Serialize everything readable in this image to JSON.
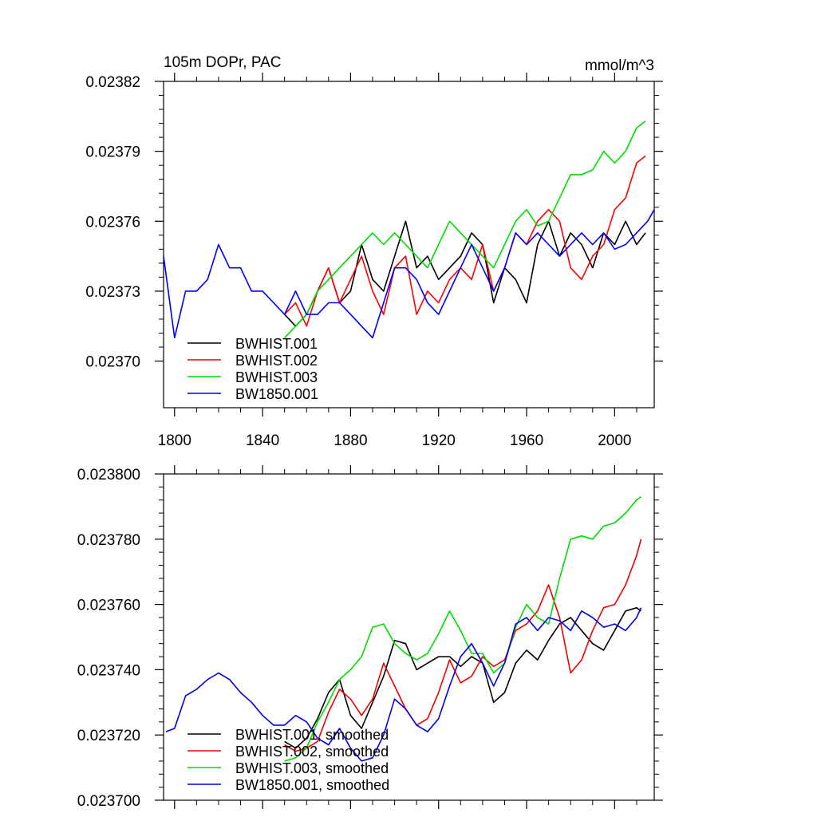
{
  "chart_data": [
    {
      "type": "line",
      "title": "105m DOPr, PAC",
      "units": "mmol/m^3",
      "xlabel": "",
      "ylabel": "",
      "xlim": [
        1795,
        2018
      ],
      "ylim": [
        0.02368,
        0.02382
      ],
      "xticks": [
        1800,
        1840,
        1880,
        1920,
        1960,
        2000
      ],
      "xtick_labels": [
        "1800",
        "1840",
        "1880",
        "1920",
        "1960",
        "2000"
      ],
      "yticks": [
        0.0237,
        0.02373,
        0.02376,
        0.02379,
        0.02382
      ],
      "ytick_labels": [
        "0.02370",
        "0.02373",
        "0.02376",
        "0.02379",
        "0.02382"
      ],
      "legend": [
        "BWHIST.001",
        "BWHIST.002",
        "BWHIST.003",
        "BW1850.001"
      ],
      "legend_position": "bottom-left",
      "series": [
        {
          "name": "BWHIST.001",
          "color": "#000000",
          "x": [
            1850,
            1855,
            1860,
            1865,
            1870,
            1875,
            1880,
            1885,
            1890,
            1895,
            1900,
            1905,
            1910,
            1915,
            1920,
            1925,
            1930,
            1935,
            1940,
            1945,
            1950,
            1955,
            1960,
            1965,
            1970,
            1975,
            1980,
            1985,
            1990,
            1995,
            2000,
            2005,
            2010,
            2014
          ],
          "values": [
            0.02372,
            0.023715,
            0.02372,
            0.02373,
            0.02374,
            0.023725,
            0.02373,
            0.02375,
            0.023735,
            0.02373,
            0.023745,
            0.02376,
            0.02374,
            0.023745,
            0.023735,
            0.02374,
            0.023745,
            0.023755,
            0.02375,
            0.023725,
            0.02374,
            0.023735,
            0.023725,
            0.02375,
            0.02376,
            0.023745,
            0.023755,
            0.02375,
            0.02374,
            0.023755,
            0.02375,
            0.02376,
            0.02375,
            0.023755
          ]
        },
        {
          "name": "BWHIST.002",
          "color": "#ff0000",
          "x": [
            1850,
            1855,
            1860,
            1865,
            1870,
            1875,
            1880,
            1885,
            1890,
            1895,
            1900,
            1905,
            1910,
            1915,
            1920,
            1925,
            1930,
            1935,
            1940,
            1945,
            1950,
            1955,
            1960,
            1965,
            1970,
            1975,
            1980,
            1985,
            1990,
            1995,
            2000,
            2005,
            2010,
            2014
          ],
          "values": [
            0.02372,
            0.023725,
            0.023715,
            0.02373,
            0.02374,
            0.023725,
            0.023735,
            0.023745,
            0.02373,
            0.02372,
            0.02374,
            0.023745,
            0.02372,
            0.02373,
            0.023725,
            0.023735,
            0.02374,
            0.023735,
            0.02375,
            0.02373,
            0.02374,
            0.023755,
            0.02375,
            0.02376,
            0.023765,
            0.02376,
            0.02374,
            0.023735,
            0.023745,
            0.02375,
            0.023765,
            0.02377,
            0.023785,
            0.023788
          ]
        },
        {
          "name": "BWHIST.003",
          "color": "#00dd00",
          "x": [
            1850,
            1855,
            1860,
            1865,
            1870,
            1875,
            1880,
            1885,
            1890,
            1895,
            1900,
            1905,
            1910,
            1915,
            1920,
            1925,
            1930,
            1935,
            1940,
            1945,
            1950,
            1955,
            1960,
            1965,
            1970,
            1975,
            1980,
            1985,
            1990,
            1995,
            2000,
            2005,
            2010,
            2014
          ],
          "values": [
            0.02371,
            0.023715,
            0.02372,
            0.02373,
            0.023735,
            0.02374,
            0.023745,
            0.02375,
            0.023755,
            0.02375,
            0.023755,
            0.02375,
            0.023745,
            0.02374,
            0.02375,
            0.02376,
            0.023755,
            0.02375,
            0.023745,
            0.02374,
            0.02375,
            0.02376,
            0.023765,
            0.023758,
            0.02376,
            0.02377,
            0.02378,
            0.02378,
            0.023782,
            0.02379,
            0.023785,
            0.02379,
            0.0238,
            0.023803
          ]
        },
        {
          "name": "BW1850.001",
          "color": "#0000ff",
          "x": [
            1795,
            1800,
            1805,
            1810,
            1815,
            1820,
            1825,
            1830,
            1835,
            1840,
            1845,
            1850,
            1855,
            1860,
            1865,
            1870,
            1875,
            1880,
            1885,
            1890,
            1895,
            1900,
            1905,
            1910,
            1915,
            1920,
            1925,
            1930,
            1935,
            1940,
            1945,
            1950,
            1955,
            1960,
            1965,
            1970,
            1975,
            1980,
            1985,
            1990,
            1995,
            2000,
            2005,
            2010,
            2015,
            2018
          ],
          "values": [
            0.023745,
            0.02371,
            0.02373,
            0.02373,
            0.023735,
            0.02375,
            0.02374,
            0.02374,
            0.02373,
            0.02373,
            0.023725,
            0.02372,
            0.02373,
            0.02372,
            0.02372,
            0.023725,
            0.023725,
            0.02372,
            0.023715,
            0.02371,
            0.023725,
            0.02374,
            0.02374,
            0.023735,
            0.023725,
            0.02372,
            0.02373,
            0.02374,
            0.02375,
            0.02374,
            0.02373,
            0.02374,
            0.023755,
            0.02375,
            0.023755,
            0.02375,
            0.023745,
            0.02375,
            0.023755,
            0.02375,
            0.023755,
            0.023748,
            0.02375,
            0.023755,
            0.02376,
            0.023765
          ]
        }
      ]
    },
    {
      "type": "line",
      "title": "",
      "xlabel": "",
      "ylabel": "",
      "xlim": [
        1795,
        2018
      ],
      "ylim": [
        0.0237,
        0.0238
      ],
      "xticks": [
        1800,
        1840,
        1880,
        1920,
        1960,
        2000
      ],
      "yticks": [
        0.0237,
        0.02372,
        0.02374,
        0.02376,
        0.02378,
        0.0238
      ],
      "ytick_labels": [
        "0.023700",
        "0.023720",
        "0.023740",
        "0.023760",
        "0.023780",
        "0.023800"
      ],
      "legend": [
        "BWHIST.001, smoothed",
        "BWHIST.002, smoothed",
        "BWHIST.003, smoothed",
        "BW1850.001, smoothed"
      ],
      "legend_position": "bottom-left",
      "series": [
        {
          "name": "BWHIST.001, smoothed",
          "color": "#000000",
          "x": [
            1850,
            1855,
            1860,
            1865,
            1870,
            1875,
            1880,
            1885,
            1890,
            1895,
            1900,
            1905,
            1910,
            1915,
            1920,
            1925,
            1930,
            1935,
            1940,
            1945,
            1950,
            1955,
            1960,
            1965,
            1970,
            1975,
            1980,
            1985,
            1990,
            1995,
            2000,
            2005,
            2010,
            2012
          ],
          "values": [
            0.023718,
            0.023716,
            0.023719,
            0.023725,
            0.023733,
            0.023737,
            0.023726,
            0.023722,
            0.02373,
            0.023738,
            0.023749,
            0.023748,
            0.02374,
            0.023742,
            0.023744,
            0.023744,
            0.023741,
            0.023744,
            0.023742,
            0.02373,
            0.023733,
            0.023742,
            0.023746,
            0.023743,
            0.023749,
            0.023754,
            0.023756,
            0.023752,
            0.023748,
            0.023746,
            0.023752,
            0.023758,
            0.023759,
            0.023758
          ]
        },
        {
          "name": "BWHIST.002, smoothed",
          "color": "#ee0000",
          "x": [
            1850,
            1855,
            1860,
            1865,
            1870,
            1875,
            1880,
            1885,
            1890,
            1895,
            1900,
            1905,
            1910,
            1915,
            1920,
            1925,
            1930,
            1935,
            1940,
            1945,
            1950,
            1955,
            1960,
            1965,
            1970,
            1975,
            1980,
            1985,
            1990,
            1995,
            2000,
            2005,
            2010,
            2012
          ],
          "values": [
            0.023717,
            0.023715,
            0.023716,
            0.023718,
            0.023727,
            0.023734,
            0.023731,
            0.023726,
            0.023731,
            0.023742,
            0.023735,
            0.023728,
            0.023723,
            0.023725,
            0.023733,
            0.023743,
            0.023736,
            0.023738,
            0.023744,
            0.023741,
            0.023743,
            0.023752,
            0.023754,
            0.023758,
            0.023766,
            0.023756,
            0.023739,
            0.023743,
            0.023752,
            0.023759,
            0.02376,
            0.023766,
            0.023775,
            0.02378
          ]
        },
        {
          "name": "BWHIST.003, smoothed",
          "color": "#00dd00",
          "x": [
            1850,
            1855,
            1860,
            1865,
            1870,
            1875,
            1880,
            1885,
            1890,
            1895,
            1900,
            1905,
            1910,
            1915,
            1920,
            1925,
            1930,
            1935,
            1940,
            1945,
            1950,
            1955,
            1960,
            1965,
            1970,
            1975,
            1980,
            1985,
            1990,
            1995,
            2000,
            2005,
            2010,
            2012
          ],
          "values": [
            0.023712,
            0.023713,
            0.023716,
            0.023724,
            0.02373,
            0.023737,
            0.02374,
            0.023744,
            0.023753,
            0.023754,
            0.023748,
            0.023745,
            0.023743,
            0.023745,
            0.023751,
            0.023758,
            0.023752,
            0.023745,
            0.023745,
            0.023739,
            0.023742,
            0.023753,
            0.02376,
            0.023756,
            0.023754,
            0.023768,
            0.02378,
            0.023781,
            0.02378,
            0.023784,
            0.023785,
            0.023788,
            0.023792,
            0.023793
          ]
        },
        {
          "name": "BW1850.001, smoothed",
          "color": "#0000ee",
          "x": [
            1796,
            1800,
            1805,
            1810,
            1815,
            1820,
            1825,
            1830,
            1835,
            1840,
            1845,
            1850,
            1855,
            1860,
            1865,
            1870,
            1875,
            1880,
            1885,
            1890,
            1895,
            1900,
            1905,
            1910,
            1915,
            1920,
            1925,
            1930,
            1935,
            1940,
            1945,
            1950,
            1955,
            1960,
            1965,
            1970,
            1975,
            1980,
            1985,
            1990,
            1995,
            2000,
            2005,
            2010,
            2012
          ],
          "values": [
            0.023721,
            0.023722,
            0.023732,
            0.023734,
            0.023737,
            0.023739,
            0.023737,
            0.023733,
            0.02373,
            0.023726,
            0.023723,
            0.023723,
            0.023726,
            0.023724,
            0.023719,
            0.023717,
            0.023722,
            0.023716,
            0.023712,
            0.023713,
            0.02372,
            0.023731,
            0.023728,
            0.023723,
            0.023721,
            0.023725,
            0.023735,
            0.023744,
            0.023748,
            0.023742,
            0.023735,
            0.023742,
            0.023754,
            0.023756,
            0.023752,
            0.023756,
            0.023755,
            0.023752,
            0.023758,
            0.023756,
            0.023753,
            0.023754,
            0.023752,
            0.023756,
            0.023759
          ]
        }
      ]
    }
  ]
}
